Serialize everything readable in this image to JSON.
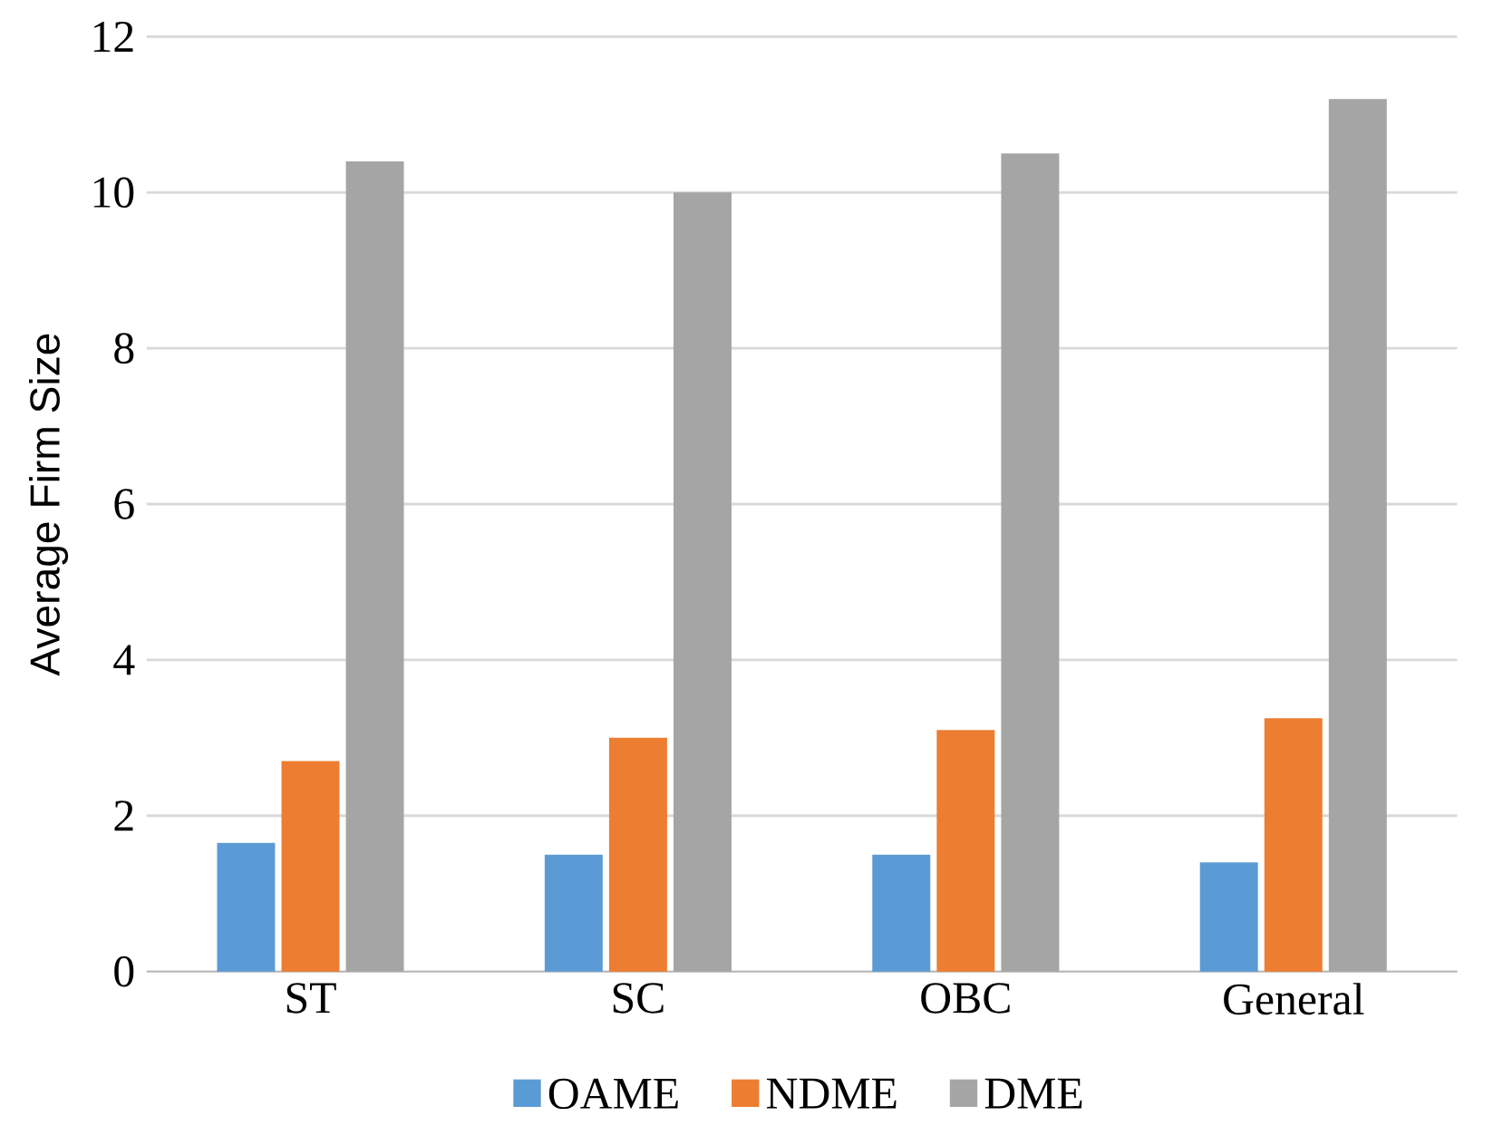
{
  "chart_data": {
    "type": "bar",
    "ylabel": "Average Firm Size",
    "categories": [
      "ST",
      "SC",
      "OBC",
      "General"
    ],
    "series": [
      {
        "name": "OAME",
        "color": "#5b9bd5",
        "values": [
          1.65,
          1.5,
          1.5,
          1.4
        ]
      },
      {
        "name": "NDME",
        "color": "#ed7d31",
        "values": [
          2.7,
          3.0,
          3.1,
          3.25
        ]
      },
      {
        "name": "DME",
        "color": "#a5a5a5",
        "values": [
          10.4,
          10.0,
          10.5,
          11.2
        ]
      }
    ],
    "ylim": [
      0,
      12
    ],
    "yticks": [
      0,
      2,
      4,
      6,
      8,
      10,
      12
    ],
    "grid": "y",
    "legend": "bottom"
  }
}
